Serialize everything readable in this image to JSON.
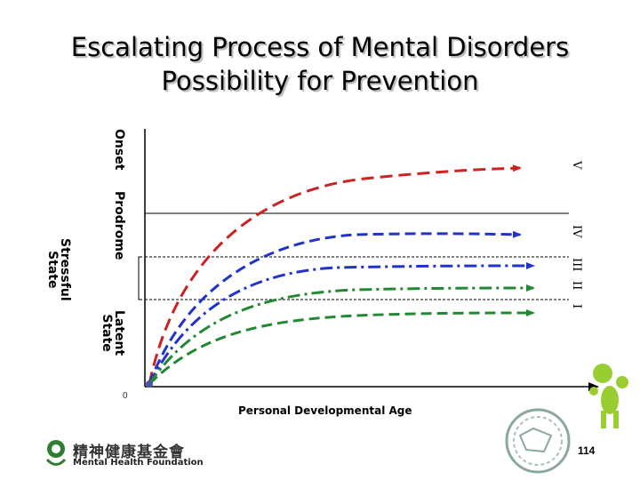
{
  "title": {
    "line1": "Escalating Process of Mental Disorders",
    "line2": "Possibility for Prevention"
  },
  "labels": {
    "onset": "Onset",
    "prodrome": "Prodrome",
    "stressful_line1": "Stressful",
    "stressful_line2": "State",
    "latent_line1": "Latent",
    "latent_line2": "State",
    "origin": "0",
    "x_axis": "Personal Developmental Age"
  },
  "stages": [
    "V",
    "IV",
    "III",
    "II",
    "I"
  ],
  "footer": {
    "org_chinese": "精神健康基金會",
    "org_english": "Mental Health Foundation",
    "page_number": "114"
  },
  "curves": [
    {
      "stage": "V",
      "color": "#cc2222",
      "style": "dashed"
    },
    {
      "stage": "IV",
      "color": "#2233cc",
      "style": "dashed"
    },
    {
      "stage": "III",
      "color": "#2233cc",
      "style": "dash-dot"
    },
    {
      "stage": "II",
      "color": "#228833",
      "style": "dash-dot"
    },
    {
      "stage": "I",
      "color": "#228833",
      "style": "dashed"
    }
  ]
}
